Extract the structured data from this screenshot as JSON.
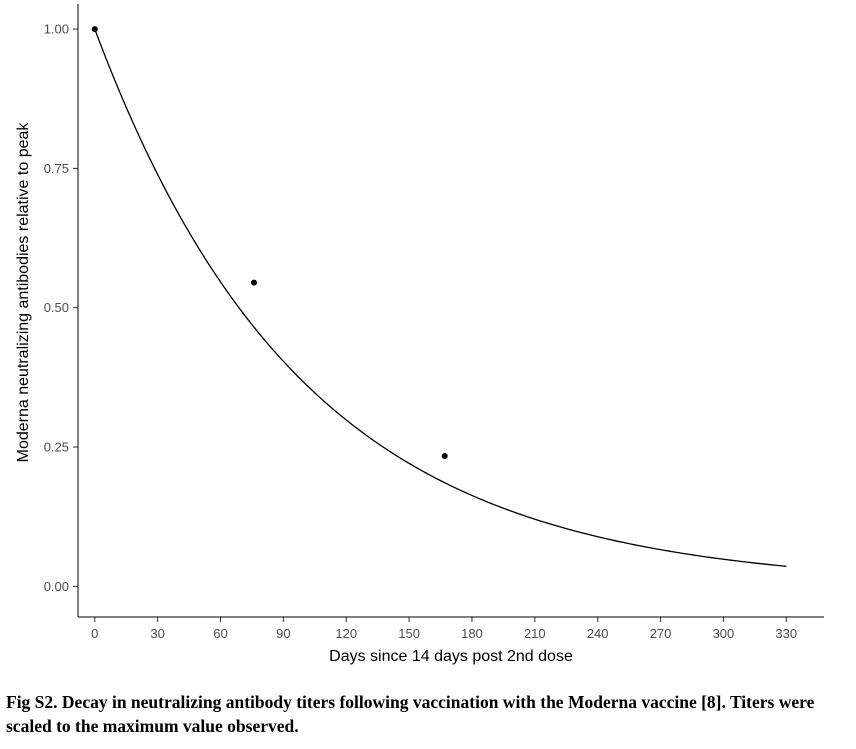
{
  "chart_data": {
    "type": "line",
    "xlabel": "Days since 14 days post 2nd dose",
    "ylabel": "Moderna neutralizing antibodies relative to peak",
    "xlim": [
      -8,
      348
    ],
    "ylim": [
      -0.055,
      1.045
    ],
    "x_ticks": [
      0,
      30,
      60,
      90,
      120,
      150,
      180,
      210,
      240,
      270,
      300,
      330
    ],
    "x_tick_labels": [
      "0",
      "30",
      "60",
      "90",
      "120",
      "150",
      "180",
      "210",
      "240",
      "270",
      "300",
      "330"
    ],
    "y_ticks": [
      0,
      0.25,
      0.5,
      0.75,
      1.0
    ],
    "y_tick_labels": [
      "0.00",
      "0.25",
      "0.50",
      "0.75",
      "1.00"
    ],
    "grid": false,
    "legend": "none",
    "series": [
      {
        "kind": "fitted-curve",
        "x_range": [
          0,
          330
        ],
        "amplitude": 1.0,
        "half_life_days": 68.8,
        "color": "#000000"
      },
      {
        "kind": "observed-points",
        "x": [
          0,
          76,
          167
        ],
        "y": [
          1.0,
          0.545,
          0.234
        ],
        "color": "#000000"
      }
    ]
  },
  "caption": "Fig S2. Decay in neutralizing antibody titers following vaccination with the Moderna vaccine [8]. Titers were scaled to the maximum value observed."
}
